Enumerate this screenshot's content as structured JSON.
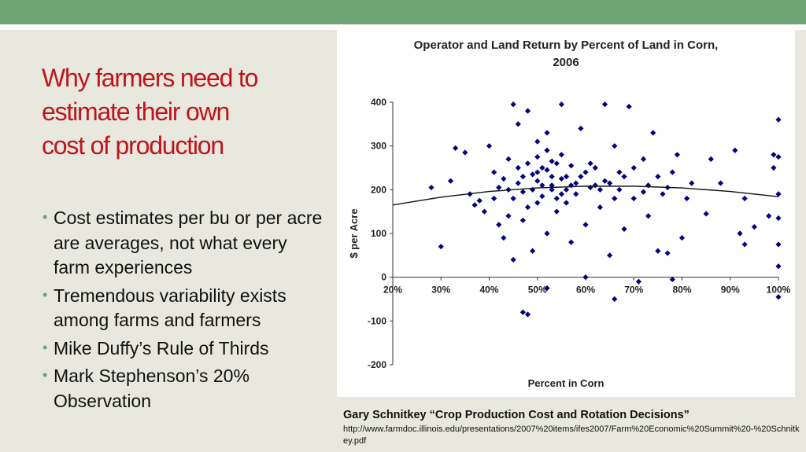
{
  "colors": {
    "topbar": "#6fa274",
    "panel": "#e8e8de",
    "title": "#c0141c",
    "bullet_dot": "#6fa274",
    "point": "#000080"
  },
  "slide": {
    "title_lines": [
      "Why farmers need to",
      "estimate their own",
      "cost of production"
    ],
    "bullets": [
      "Cost estimates per bu or per acre are averages, not what every farm experiences",
      "Tremendous variability exists among farms and farmers",
      "Mike Duffy’s Rule of Thirds",
      "Mark Stephenson’s 20% Observation"
    ],
    "bullet_symbol": "•"
  },
  "citation": {
    "title": "Gary Schnitkey “Crop Production Cost and Rotation Decisions”",
    "url": "http://www.farmdoc.illinois.edu/presentations/2007%20items/ifes2007/Farm%20Economic%20Summit%20-%20Schnitkey.pdf"
  },
  "chart_data": {
    "type": "scatter",
    "title_lines": [
      "Operator and Land Return by Percent of Land in Corn,",
      "2006"
    ],
    "xlabel": "Percent in Corn",
    "ylabel": "$ per Acre",
    "xlim": [
      20,
      100
    ],
    "ylim": [
      -200,
      400
    ],
    "x_ticks": [
      20,
      30,
      40,
      50,
      60,
      70,
      80,
      90,
      100
    ],
    "x_tick_labels": [
      "20%",
      "30%",
      "40%",
      "50%",
      "60%",
      "70%",
      "80%",
      "90%",
      "100%"
    ],
    "y_ticks": [
      400,
      300,
      200,
      100,
      0,
      -100,
      -200
    ],
    "y_tick_labels": [
      "400",
      "300",
      "200",
      "100",
      "0",
      "-100",
      "-200"
    ],
    "grid": false,
    "marker": "diamond",
    "trendline": {
      "type": "quadratic",
      "x": [
        20,
        30,
        40,
        50,
        60,
        70,
        80,
        90,
        100
      ],
      "y": [
        165,
        183,
        196,
        204,
        208,
        208,
        204,
        196,
        184
      ]
    },
    "points": [
      [
        30,
        70
      ],
      [
        28,
        205
      ],
      [
        32,
        220
      ],
      [
        33,
        295
      ],
      [
        35,
        285
      ],
      [
        36,
        190
      ],
      [
        37,
        165
      ],
      [
        38,
        175
      ],
      [
        40,
        300
      ],
      [
        41,
        240
      ],
      [
        42,
        120
      ],
      [
        43,
        90
      ],
      [
        44,
        140
      ],
      [
        44,
        270
      ],
      [
        45,
        40
      ],
      [
        45,
        395
      ],
      [
        46,
        350
      ],
      [
        47,
        130
      ],
      [
        48,
        260
      ],
      [
        48,
        380
      ],
      [
        49,
        60
      ],
      [
        50,
        310
      ],
      [
        50,
        170
      ],
      [
        51,
        250
      ],
      [
        52,
        100
      ],
      [
        52,
        330
      ],
      [
        53,
        200
      ],
      [
        54,
        150
      ],
      [
        55,
        280
      ],
      [
        55,
        395
      ],
      [
        56,
        230
      ],
      [
        57,
        80
      ],
      [
        58,
        190
      ],
      [
        59,
        340
      ],
      [
        60,
        120
      ],
      [
        60,
        0
      ],
      [
        61,
        260
      ],
      [
        62,
        210
      ],
      [
        63,
        160
      ],
      [
        64,
        395
      ],
      [
        65,
        50
      ],
      [
        66,
        300
      ],
      [
        67,
        240
      ],
      [
        68,
        110
      ],
      [
        69,
        390
      ],
      [
        70,
        180
      ],
      [
        71,
        -10
      ],
      [
        72,
        270
      ],
      [
        73,
        140
      ],
      [
        74,
        330
      ],
      [
        75,
        60
      ],
      [
        76,
        190
      ],
      [
        77,
        55
      ],
      [
        78,
        240
      ],
      [
        78,
        -5
      ],
      [
        79,
        280
      ],
      [
        80,
        90
      ],
      [
        81,
        180
      ],
      [
        85,
        145
      ],
      [
        86,
        270
      ],
      [
        88,
        215
      ],
      [
        91,
        290
      ],
      [
        92,
        100
      ],
      [
        93,
        75
      ],
      [
        93,
        180
      ],
      [
        95,
        115
      ],
      [
        98,
        140
      ],
      [
        99,
        280
      ],
      [
        99,
        250
      ],
      [
        100,
        360
      ],
      [
        100,
        275
      ],
      [
        100,
        190
      ],
      [
        100,
        135
      ],
      [
        100,
        75
      ],
      [
        100,
        25
      ],
      [
        100,
        -45
      ],
      [
        47,
        -80
      ],
      [
        48,
        -85
      ],
      [
        52,
        -25
      ],
      [
        66,
        -50
      ],
      [
        42,
        205
      ],
      [
        43,
        225
      ],
      [
        46,
        215
      ],
      [
        47,
        195
      ],
      [
        49,
        235
      ],
      [
        50,
        220
      ],
      [
        51,
        185
      ],
      [
        52,
        245
      ],
      [
        53,
        210
      ],
      [
        54,
        260
      ],
      [
        55,
        225
      ],
      [
        56,
        200
      ],
      [
        57,
        255
      ],
      [
        58,
        215
      ],
      [
        45,
        180
      ],
      [
        50,
        275
      ],
      [
        49,
        200
      ],
      [
        51,
        210
      ],
      [
        53,
        265
      ],
      [
        48,
        160
      ],
      [
        54,
        180
      ],
      [
        52,
        290
      ],
      [
        56,
        170
      ],
      [
        59,
        230
      ],
      [
        61,
        205
      ],
      [
        62,
        250
      ],
      [
        64,
        220
      ],
      [
        66,
        180
      ],
      [
        68,
        230
      ],
      [
        70,
        250
      ],
      [
        73,
        210
      ],
      [
        75,
        230
      ],
      [
        39,
        150
      ],
      [
        41,
        180
      ],
      [
        44,
        200
      ],
      [
        46,
        250
      ],
      [
        47,
        230
      ],
      [
        50,
        240
      ],
      [
        53,
        230
      ],
      [
        55,
        190
      ],
      [
        57,
        210
      ],
      [
        60,
        240
      ],
      [
        63,
        200
      ],
      [
        65,
        215
      ],
      [
        67,
        200
      ],
      [
        72,
        195
      ],
      [
        77,
        205
      ],
      [
        82,
        215
      ]
    ]
  }
}
